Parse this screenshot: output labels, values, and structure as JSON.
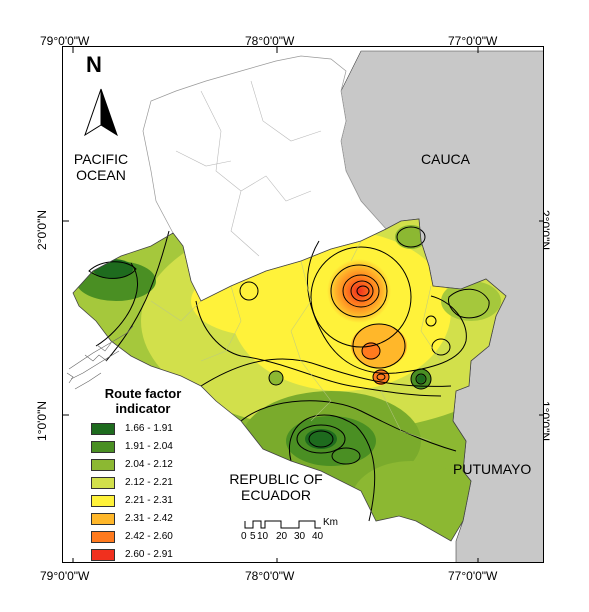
{
  "coordinates": {
    "top": [
      "79°0'0\"W",
      "78°0'0\"W",
      "77°0'0\"W"
    ],
    "bottom": [
      "79°0'0\"W",
      "78°0'0\"W",
      "77°0'0\"W"
    ],
    "left": [
      "2°0'0\"N",
      "1°0'0\"N"
    ],
    "right": [
      "2°0'0\"N",
      "1°0'0\"N"
    ]
  },
  "north_arrow": {
    "letter": "N"
  },
  "place_labels": {
    "pacific_line1": "PACIFIC",
    "pacific_line2": "OCEAN",
    "cauca": "CAUCA",
    "putumayo": "PUTUMAYO",
    "ecuador_line1": "REPUBLIC OF",
    "ecuador_line2": "ECUADOR"
  },
  "legend": {
    "title_line1": "Route factor",
    "title_line2": "indicator",
    "classes": [
      {
        "range": "1.66 - 1.91",
        "color": "#1e6b1e"
      },
      {
        "range": "1.91 - 2.04",
        "color": "#4a8f23"
      },
      {
        "range": "2.04 - 2.12",
        "color": "#8cb832"
      },
      {
        "range": "2.12 - 2.21",
        "color": "#d2e04b"
      },
      {
        "range": "2.21 - 2.31",
        "color": "#fff23a"
      },
      {
        "range": "2.31 - 2.42",
        "color": "#ffb72a"
      },
      {
        "range": "2.42 - 2.60",
        "color": "#ff7a1e"
      },
      {
        "range": "2.60 - 2.91",
        "color": "#f0301e"
      }
    ]
  },
  "scale_bar": {
    "unit": "Km",
    "ticks": [
      "0",
      "5",
      "10",
      "20",
      "30",
      "40"
    ]
  },
  "colors": {
    "neighbor_gray": "#c8c8c8",
    "boundary_line": "#000000"
  }
}
